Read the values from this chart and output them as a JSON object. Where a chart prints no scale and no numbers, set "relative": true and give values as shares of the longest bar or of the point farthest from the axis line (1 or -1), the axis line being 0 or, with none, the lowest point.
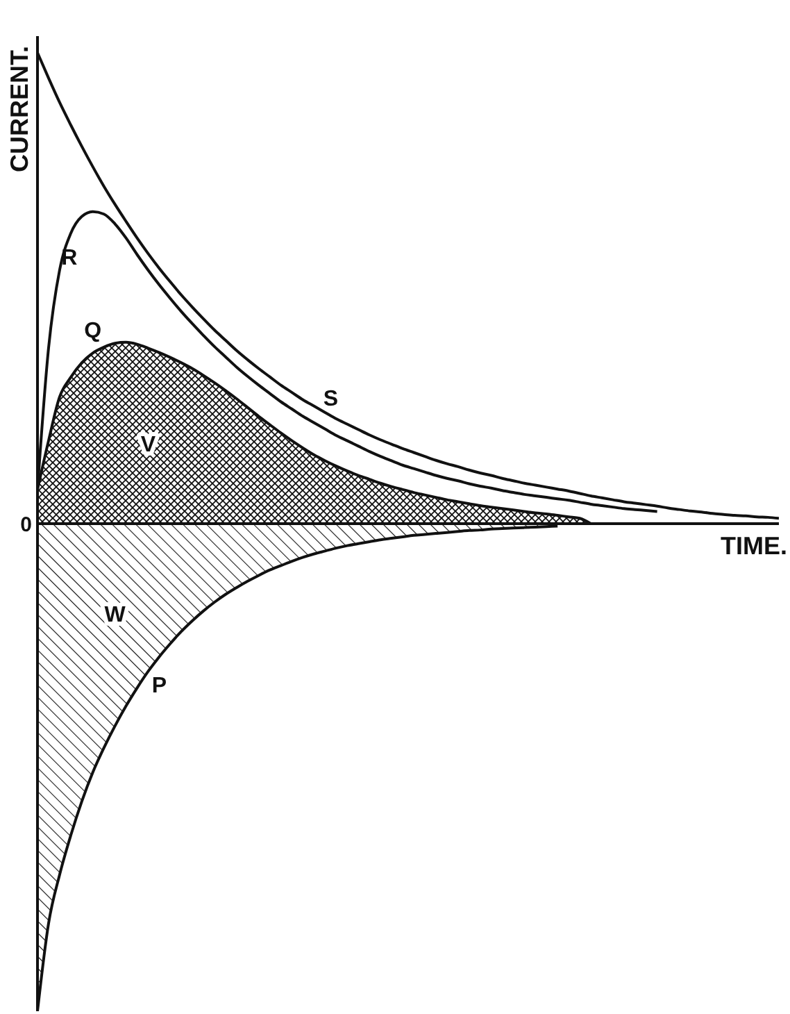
{
  "chart_data": {
    "type": "line",
    "relative": true,
    "xlabel": "TIME.",
    "ylabel": "CURRENT.",
    "marker": "none",
    "categories": [
      null,
      null,
      null,
      null,
      null,
      null,
      null,
      null,
      null,
      null,
      null,
      null,
      null,
      null,
      null,
      null,
      null,
      null,
      null,
      null,
      null,
      null,
      null,
      null,
      null,
      null,
      null,
      null,
      null,
      null,
      null,
      null,
      null,
      null,
      null,
      null,
      null,
      null,
      null,
      null,
      null,
      null,
      null,
      null,
      null,
      null,
      null,
      null,
      null,
      null,
      null,
      null,
      null,
      null,
      null,
      null,
      null,
      null,
      null,
      null,
      null,
      null,
      null,
      null,
      null,
      null,
      null,
      null
    ],
    "series": [
      {
        "name": "S",
        "color": "#111111",
        "values": [
          0.966,
          0.914,
          0.864,
          0.818,
          0.774,
          0.732,
          0.692,
          0.655,
          0.62,
          0.586,
          0.554,
          0.524,
          0.496,
          0.469,
          0.444,
          0.42,
          0.397,
          0.376,
          0.355,
          0.336,
          0.318,
          0.301,
          0.284,
          0.269,
          0.254,
          0.241,
          0.228,
          0.215,
          0.204,
          0.193,
          0.182,
          0.172,
          0.163,
          0.154,
          0.146,
          0.138,
          0.13,
          0.123,
          0.117,
          0.11,
          0.104,
          0.099,
          0.093,
          0.088,
          0.083,
          0.079,
          0.075,
          0.071,
          0.067,
          0.062,
          0.057,
          0.053,
          0.049,
          0.045,
          0.042,
          0.039,
          0.036,
          0.032,
          0.029,
          0.026,
          0.024,
          0.021,
          0.019,
          0.017,
          0.016,
          0.014,
          0.013,
          0.011
        ]
      },
      {
        "name": "R",
        "color": "#111111",
        "values": [
          0.07,
          0.36,
          0.52,
          0.595,
          0.63,
          0.64,
          0.635,
          0.615,
          0.586,
          0.552,
          0.52,
          0.49,
          0.462,
          0.435,
          0.41,
          0.386,
          0.363,
          0.342,
          0.321,
          0.302,
          0.284,
          0.267,
          0.25,
          0.235,
          0.22,
          0.207,
          0.194,
          0.181,
          0.17,
          0.159,
          0.148,
          0.138,
          0.129,
          0.12,
          0.113,
          0.106,
          0.099,
          0.093,
          0.088,
          0.082,
          0.077,
          0.073,
          0.068,
          0.064,
          0.06,
          0.057,
          0.054,
          0.051,
          0.048,
          0.044,
          0.04,
          0.037,
          0.034,
          0.031,
          0.029,
          0.027,
          0.025,
          null,
          null,
          null,
          null,
          null,
          null,
          null,
          null,
          null,
          null,
          null
        ]
      },
      {
        "name": "Q",
        "type": "area",
        "color": "#111111",
        "values": [
          0.07,
          0.17,
          0.26,
          0.3,
          0.33,
          0.35,
          0.362,
          0.37,
          0.372,
          0.368,
          0.36,
          0.351,
          0.341,
          0.33,
          0.318,
          0.304,
          0.289,
          0.273,
          0.256,
          0.238,
          0.22,
          0.203,
          0.186,
          0.17,
          0.155,
          0.141,
          0.129,
          0.118,
          0.108,
          0.099,
          0.091,
          0.083,
          0.076,
          0.07,
          0.064,
          0.059,
          0.054,
          0.049,
          0.045,
          0.041,
          0.037,
          0.034,
          0.031,
          0.028,
          0.025,
          0.022,
          0.02,
          0.017,
          0.014,
          0.011,
          0,
          null,
          null,
          null,
          null,
          null,
          null,
          null,
          null,
          null,
          null,
          null,
          null,
          null,
          null,
          null,
          null,
          null
        ]
      },
      {
        "name": "P",
        "type": "area",
        "color": "#111111",
        "values": [
          -1,
          -0.82,
          -0.72,
          -0.64,
          -0.57,
          -0.51,
          -0.46,
          -0.415,
          -0.374,
          -0.337,
          -0.303,
          -0.273,
          -0.246,
          -0.221,
          -0.199,
          -0.179,
          -0.161,
          -0.145,
          -0.131,
          -0.118,
          -0.106,
          -0.095,
          -0.086,
          -0.077,
          -0.069,
          -0.062,
          -0.056,
          -0.05,
          -0.045,
          -0.041,
          -0.037,
          -0.033,
          -0.03,
          -0.027,
          -0.024,
          -0.022,
          -0.02,
          -0.018,
          -0.016,
          -0.014,
          -0.013,
          -0.011,
          -0.01,
          -0.009,
          -0.008,
          -0.007,
          -0.006,
          -0.005,
          null,
          null,
          null,
          null,
          null,
          null,
          null,
          null,
          null,
          null,
          null,
          null,
          null,
          null,
          null,
          null,
          null,
          null,
          null,
          null
        ]
      }
    ],
    "ref_lines": [
      {
        "axis": "y",
        "value": 0,
        "label": "0"
      }
    ],
    "annotations": [
      "V",
      "W"
    ]
  }
}
